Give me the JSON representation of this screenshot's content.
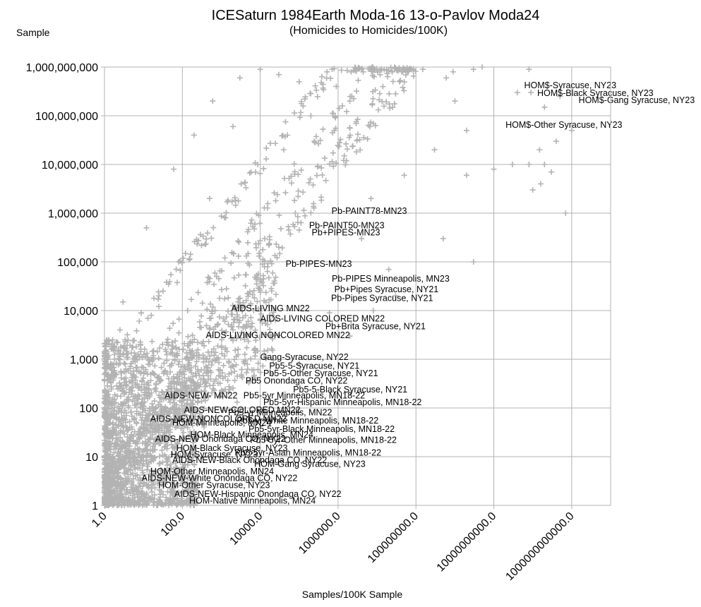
{
  "chart_data": {
    "type": "scatter",
    "title": "ICESaturn 1984Earth Moda-16 13-o-Pavlov Moda24",
    "subtitle": "(Homicides to Homicides/100K)",
    "xlabel": "Samples/100K Sample",
    "ylabel": "Sample",
    "x_scale": "log",
    "y_scale": "log",
    "xlim": [
      1,
      10000000000000
    ],
    "ylim": [
      1,
      1000000000
    ],
    "grid": true,
    "legend": "none",
    "marker": "plus",
    "colors": {
      "marker": "#b3b3b3",
      "grid": "#b3b3b3",
      "text": "#000000"
    },
    "x_ticks": [
      {
        "value": 1,
        "label": "1.0"
      },
      {
        "value": 100,
        "label": "100.0"
      },
      {
        "value": 10000,
        "label": "10000.0"
      },
      {
        "value": 1000000,
        "label": "1000000.0"
      },
      {
        "value": 100000000,
        "label": "100000000.0"
      },
      {
        "value": 10000000000,
        "label": "10000000000.0"
      },
      {
        "value": 1000000000000,
        "label": "1000000000000.0"
      }
    ],
    "y_ticks": [
      {
        "value": 1,
        "label": "1"
      },
      {
        "value": 10,
        "label": "10"
      },
      {
        "value": 100,
        "label": "100"
      },
      {
        "value": 1000,
        "label": "1,000"
      },
      {
        "value": 10000,
        "label": "10,000"
      },
      {
        "value": 100000,
        "label": "100,000"
      },
      {
        "value": 1000000,
        "label": "1,000,000"
      },
      {
        "value": 10000000,
        "label": "10,000,000"
      },
      {
        "value": 100000000,
        "label": "100,000,000"
      },
      {
        "value": 1000000000,
        "label": "1,000,000,000"
      }
    ],
    "annotations": [
      {
        "text": "HOM$-Syracuse, NY23",
        "x": 60000000000,
        "y": 420000000
      },
      {
        "text": "HOM$-Black Syracuse, NY23",
        "x": 130000000000,
        "y": 290000000
      },
      {
        "text": "HOM$-Gang Syracuse, NY23",
        "x": 1500000000000,
        "y": 210000000
      },
      {
        "text": "HOM$-Other Syracuse, NY23",
        "x": 20000000000,
        "y": 65000000
      },
      {
        "text": "Pb-PAINT78-MN23",
        "x": 680000,
        "y": 1100000
      },
      {
        "text": "Pb-PAINT50-MN23",
        "x": 180000,
        "y": 560000
      },
      {
        "text": "Pb+PIPES-MN23",
        "x": 210000,
        "y": 400000
      },
      {
        "text": "Pb-PIPES-MN23",
        "x": 45000,
        "y": 90000
      },
      {
        "text": "Pb-PIPES Minneapolis, MN23",
        "x": 690000,
        "y": 45000
      },
      {
        "text": "Pb+Pipes Syracuse, NY21",
        "x": 800000,
        "y": 27000
      },
      {
        "text": "Pb-Pipes Syracuse, NY21",
        "x": 660000,
        "y": 18000
      },
      {
        "text": "AIDS-LIVING MN22",
        "x": 1800,
        "y": 11000
      },
      {
        "text": "AIDS-LIVING COLORED MN22",
        "x": 10000,
        "y": 6800
      },
      {
        "text": "Pb+Brita Syracuse, NY21",
        "x": 470000,
        "y": 4700
      },
      {
        "text": "AIDS-LIVING NONCOLORED MN22",
        "x": 400,
        "y": 3100
      },
      {
        "text": "Gang-Syracuse, NY22",
        "x": 10000,
        "y": 1100
      },
      {
        "text": "Pb5-5-Syracuse, NY21",
        "x": 17000,
        "y": 730
      },
      {
        "text": "Pb5-5-Other Syracuse, NY21",
        "x": 12000,
        "y": 510
      },
      {
        "text": "Pb5 Onondaga CO, NY22",
        "x": 4200,
        "y": 360
      },
      {
        "text": "Pb5-5-Black Syracuse, NY21",
        "x": 70000,
        "y": 240
      },
      {
        "text": "AIDS-NEW- MN22",
        "x": 35,
        "y": 180
      },
      {
        "text": "Pb5-5yr Minneapolis, MN18-22",
        "x": 3700,
        "y": 180
      },
      {
        "text": "Pb5-5yr-Hispanic Minneapolis, MN18-22",
        "x": 12000,
        "y": 130
      },
      {
        "text": "AIDS-NEW-COLORED MN22",
        "x": 110,
        "y": 90
      },
      {
        "text": "Pb5-yr Minneapolis, MN22",
        "x": 1500,
        "y": 80
      },
      {
        "text": "AIDS-NEW-NONCOLORED MN22",
        "x": 15,
        "y": 60
      },
      {
        "text": "Pb5-yr White Minneapolis, MN18-22",
        "x": 2500,
        "y": 55
      },
      {
        "text": "HOM-Minneapolis, MN24",
        "x": 55,
        "y": 50
      },
      {
        "text": "Pb5-5yr-Black Minneapolis, MN18-22",
        "x": 5000,
        "y": 37
      },
      {
        "text": "HOM-Black Minneapolis, MN24",
        "x": 160,
        "y": 28
      },
      {
        "text": "AIDS-NEW Onondaga CO, NY22",
        "x": 20,
        "y": 23
      },
      {
        "text": "Pb5-5yr-Other Minneapolis, MN18-22",
        "x": 5500,
        "y": 22
      },
      {
        "text": "HOM-Black Syracuse, NY23",
        "x": 70,
        "y": 15
      },
      {
        "text": "HOM-Syracuse, NY23",
        "x": 50,
        "y": 11
      },
      {
        "text": "Pb5-5yr-Asian Minneapolis, MN18-22",
        "x": 2200,
        "y": 12
      },
      {
        "text": "AIDS-NEW-Black Onondaga CO, NY22",
        "x": 55,
        "y": 8.5
      },
      {
        "text": "HOM-Gang Syracuse, NY23",
        "x": 7000,
        "y": 7
      },
      {
        "text": "HOM-Other Minneapolis, MN24",
        "x": 15,
        "y": 5
      },
      {
        "text": "AIDS-NEW-White Onondaga CO, NY22",
        "x": 9,
        "y": 3.6
      },
      {
        "text": "HOM-Other Syracuse, NY23",
        "x": 24,
        "y": 2.6
      },
      {
        "text": "AIDS-NEW-Hispanic Onondaga CO, NY22",
        "x": 62,
        "y": 1.7
      },
      {
        "text": "HOM-Native Minneapolis, MN24",
        "x": 150,
        "y": 1.25
      }
    ],
    "series": [
      {
        "points": [
          [
            80000000000.0,
            900000000.0
          ],
          [
            900000000.0,
            800000000.0
          ],
          [
            3000000000.0,
            900000000.0
          ],
          [
            600000000.0,
            600000000.0
          ],
          [
            40000000000.0,
            300000000.0
          ],
          [
            200000000000.0,
            150000000.0
          ],
          [
            150000000000.0,
            20000000.0
          ],
          [
            80000000000.0,
            10000000.0
          ],
          [
            30000000000.0,
            10000000.0
          ],
          [
            200000000000.0,
            10000000.0
          ],
          [
            100000000000.0,
            3000000.0
          ],
          [
            700000000000.0,
            1000000.0
          ],
          [
            2000000000.0,
            6000000.0
          ],
          [
            300000000.0,
            20000000.0
          ],
          [
            50000000.0,
            6000000.0
          ],
          [
            7000000.0,
            2000000.0
          ],
          [
            4000000.0,
            300000.0
          ],
          [
            500000000.0,
            300000.0
          ],
          [
            3000000000.0,
            100000.0
          ],
          [
            20000000.0,
            70000.0
          ],
          [
            600000.0,
            9000.0
          ],
          [
            30000000.0,
            20000.0
          ],
          [
            100000.0,
            800.0
          ],
          [
            2000000.0,
            3000.0
          ],
          [
            8000000.0,
            10000.0
          ],
          [
            10000000000.0,
            8000000.0
          ],
          [
            400000000000.0,
            30000000.0
          ],
          [
            2000000000.0,
            50000000.0
          ],
          [
            1000000000.0,
            200000000.0
          ],
          [
            5000000000.0,
            1000000000.0
          ],
          [
            1000000000000.0,
            50000000.0
          ],
          [
            300000000000.0,
            7000000.0
          ],
          [
            160000000000.0,
            4000000.0
          ],
          [
            500000000000.0,
            250000000.0
          ],
          [
            90000000000.0,
            300000000.0
          ],
          [
            1.5,
            600
          ],
          [
            2.5,
            4000.0
          ],
          [
            1.3,
            2000.0
          ],
          [
            1.8,
            150
          ],
          [
            3,
            15000.0
          ],
          [
            12,
            500000.0
          ],
          [
            60,
            8000000.0
          ],
          [
            200,
            40000000.0
          ],
          [
            600,
            200000000.0
          ],
          [
            3000.0,
            600000000.0
          ],
          [
            10000.0,
            900000000.0
          ],
          [
            30000.0,
            700000000.0
          ],
          [
            100000.0,
            500000000.0
          ],
          [
            700000.0,
            900000000.0
          ],
          [
            4000000.0,
            900000000.0
          ],
          [
            12000000.0,
            700000000.0
          ],
          [
            30000000.0,
            950000000.0
          ],
          [
            60000000.0,
            800000000.0
          ],
          [
            150000000.0,
            900000000.0
          ],
          [
            2000.0,
            60000000.0
          ],
          [
            500,
            2000000.0
          ],
          [
            80,
            100000.0
          ],
          [
            25,
            20000.0
          ],
          [
            6,
            1000.0
          ],
          [
            3.5,
            300
          ],
          [
            40000.0,
            20000000.0
          ],
          [
            200000.0,
            100000000.0
          ],
          [
            900000.0,
            400000000.0
          ],
          [
            2000000.0,
            200000000.0
          ],
          [
            800000.0,
            50000000.0
          ],
          [
            300000.0,
            9000000.0
          ],
          [
            80000.0,
            1000000.0
          ],
          [
            30000.0,
            200000.0
          ],
          [
            10000.0,
            40000.0
          ],
          [
            2000.0,
            4000.0
          ]
        ]
      }
    ]
  }
}
